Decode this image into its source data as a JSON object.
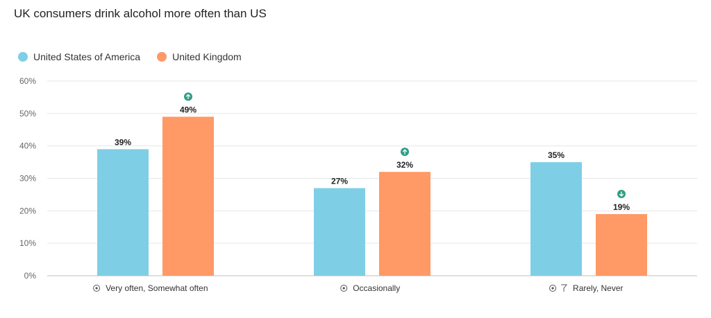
{
  "title": "UK consumers drink alcohol more often than US",
  "legend": [
    {
      "name": "United States of America",
      "color": "#7ecfe6"
    },
    {
      "name": "United Kingdom",
      "color": "#ff9966"
    }
  ],
  "colors": {
    "accent_up": "#2e9e86",
    "grid": "#e6e6e6",
    "axis": "#bdbdbd"
  },
  "chart_data": {
    "type": "bar",
    "title": "UK consumers drink alcohol more often than US",
    "xlabel": "",
    "ylabel": "",
    "ylim": [
      0,
      60
    ],
    "yticks": [
      0,
      10,
      20,
      30,
      40,
      50,
      60
    ],
    "yticklabels": [
      "0%",
      "10%",
      "20%",
      "30%",
      "40%",
      "50%",
      "60%"
    ],
    "grid": true,
    "legend_position": "top-left",
    "categories": [
      "Very often, Somewhat often",
      "Occasionally",
      "Rarely, Never"
    ],
    "category_icons": [
      [
        "target-icon"
      ],
      [
        "target-icon"
      ],
      [
        "target-icon",
        "filter-icon"
      ]
    ],
    "series": [
      {
        "name": "United States of America",
        "color": "#7ecfe6",
        "values": [
          39,
          27,
          35
        ],
        "labels": [
          "39%",
          "27%",
          "35%"
        ],
        "indicators": [
          null,
          null,
          null
        ]
      },
      {
        "name": "United Kingdom",
        "color": "#ff9966",
        "values": [
          49,
          32,
          19
        ],
        "labels": [
          "49%",
          "32%",
          "19%"
        ],
        "indicators": [
          "up",
          "up",
          "down"
        ]
      }
    ]
  }
}
